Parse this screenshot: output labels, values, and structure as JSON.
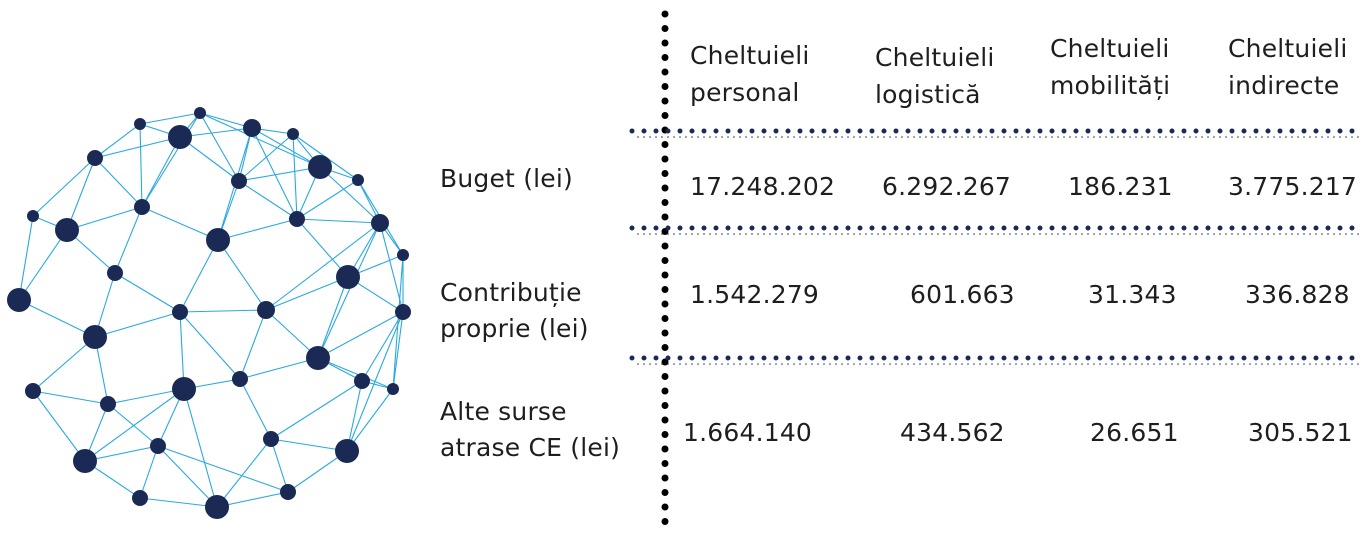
{
  "table": {
    "header": [
      [
        "Cheltuieli",
        "personal"
      ],
      [
        "Cheltuieli",
        "logistică"
      ],
      [
        "Cheltuieli",
        "mobilități"
      ],
      [
        "Cheltuieli",
        "indirecte"
      ]
    ],
    "rows": [
      {
        "label": [
          "Buget (lei)"
        ],
        "cells": [
          "17.248.202",
          "6.292.267",
          "186.231",
          "3.775.217"
        ]
      },
      {
        "label": [
          "Contribuție",
          "proprie (lei)"
        ],
        "cells": [
          "1.542.279",
          "601.663",
          "31.343",
          "336.828"
        ]
      },
      {
        "label": [
          "Alte surse",
          "atrase CE (lei)"
        ],
        "cells": [
          "1.664.140",
          "434.562",
          "26.651",
          "305.521"
        ]
      }
    ]
  }
}
